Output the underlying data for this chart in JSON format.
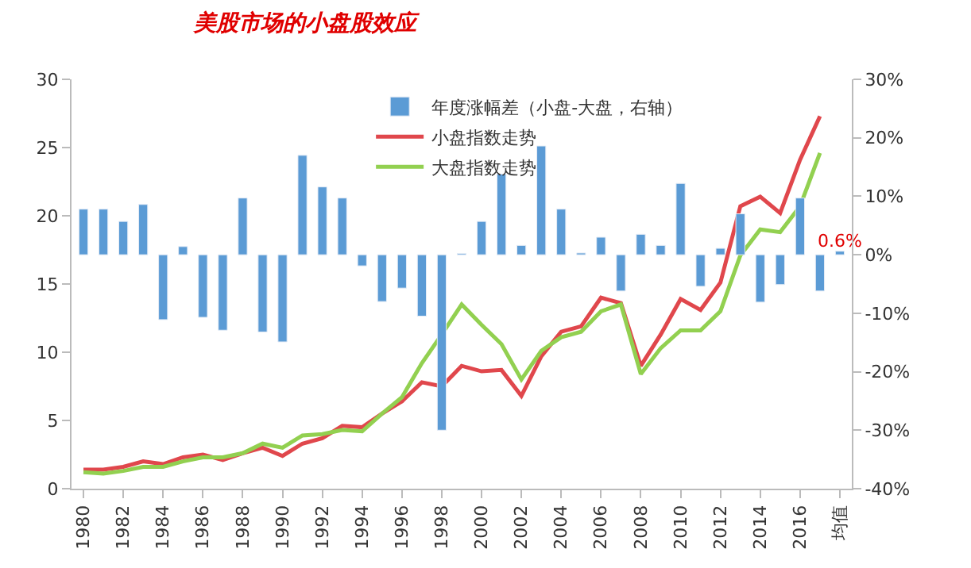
{
  "chart_data": {
    "type": "bar",
    "title": "美股市场的小盘股效应",
    "categories": [
      "1980",
      null,
      "1982",
      null,
      "1984",
      null,
      "1986",
      null,
      "1988",
      null,
      "1990",
      null,
      "1992",
      null,
      "1994",
      null,
      "1996",
      null,
      "1998",
      null,
      "2000",
      null,
      "2002",
      null,
      "2004",
      null,
      "2006",
      null,
      "2008",
      null,
      "2010",
      null,
      "2012",
      null,
      "2014",
      null,
      "2016",
      null,
      "均值"
    ],
    "series": [
      {
        "name": "年度涨幅差（小盘-大盘，右轴）",
        "axis": "y2",
        "color": "#5b9bd5",
        "values": [
          7.8,
          7.8,
          5.7,
          8.6,
          -11.1,
          1.4,
          -10.7,
          -12.9,
          9.7,
          -13.2,
          -14.9,
          17,
          11.6,
          9.7,
          -1.9,
          -8,
          -5.7,
          -10.5,
          -30,
          0.2,
          5.7,
          13.8,
          1.6,
          18.6,
          7.8,
          0.3,
          3,
          -6.2,
          3.5,
          1.6,
          12.2,
          -5.4,
          1.1,
          7,
          -8.1,
          -5.1,
          9.7,
          -6.2,
          0.6
        ],
        "value_labels": [
          null,
          null,
          null,
          null,
          null,
          null,
          null,
          null,
          null,
          null,
          null,
          null,
          null,
          null,
          null,
          null,
          null,
          null,
          null,
          null,
          null,
          null,
          null,
          null,
          null,
          null,
          null,
          null,
          null,
          null,
          null,
          null,
          null,
          null,
          null,
          null,
          null,
          null,
          "0.6%"
        ]
      },
      {
        "name": "小盘指数走势",
        "type": "line",
        "color": "#e0474c",
        "values": [
          1.4,
          1.4,
          1.6,
          2.0,
          1.8,
          2.3,
          2.5,
          2.1,
          2.6,
          3.0,
          2.4,
          3.3,
          3.7,
          4.6,
          4.5,
          5.5,
          6.4,
          7.8,
          7.5,
          9.0,
          8.6,
          8.7,
          6.8,
          9.7,
          11.5,
          11.9,
          14.0,
          13.6,
          9.0,
          11.3,
          13.9,
          13.1,
          15.1,
          20.7,
          21.4,
          20.2,
          24.1,
          27.3,
          null
        ]
      },
      {
        "name": "大盘指数走势",
        "type": "line",
        "color": "#92d050",
        "values": [
          1.2,
          1.1,
          1.3,
          1.6,
          1.6,
          2.0,
          2.3,
          2.3,
          2.6,
          3.3,
          3.0,
          3.9,
          4.0,
          4.3,
          4.2,
          5.5,
          6.7,
          9.2,
          11.3,
          13.5,
          12.0,
          10.6,
          8.0,
          10.1,
          11.1,
          11.5,
          13.0,
          13.5,
          8.4,
          10.3,
          11.6,
          11.6,
          13.0,
          17.1,
          19.0,
          18.8,
          20.7,
          24.6,
          null
        ]
      }
    ],
    "ylim": [
      0,
      30
    ],
    "yticks": [
      0,
      5,
      10,
      15,
      20,
      25,
      30
    ],
    "y2lim": [
      -40,
      30
    ],
    "y2ticks": [
      {
        "value": -40,
        "label": "-40%"
      },
      {
        "value": -30,
        "label": "-30%"
      },
      {
        "value": -20,
        "label": "-20%"
      },
      {
        "value": -10,
        "label": "-10%"
      },
      {
        "value": 0,
        "label": "0%"
      },
      {
        "value": 10,
        "label": "10%"
      },
      {
        "value": 20,
        "label": "20%"
      },
      {
        "value": 30,
        "label": "30%"
      }
    ],
    "grid": false,
    "legend": "top",
    "marker": "none",
    "line_style": "solid"
  }
}
